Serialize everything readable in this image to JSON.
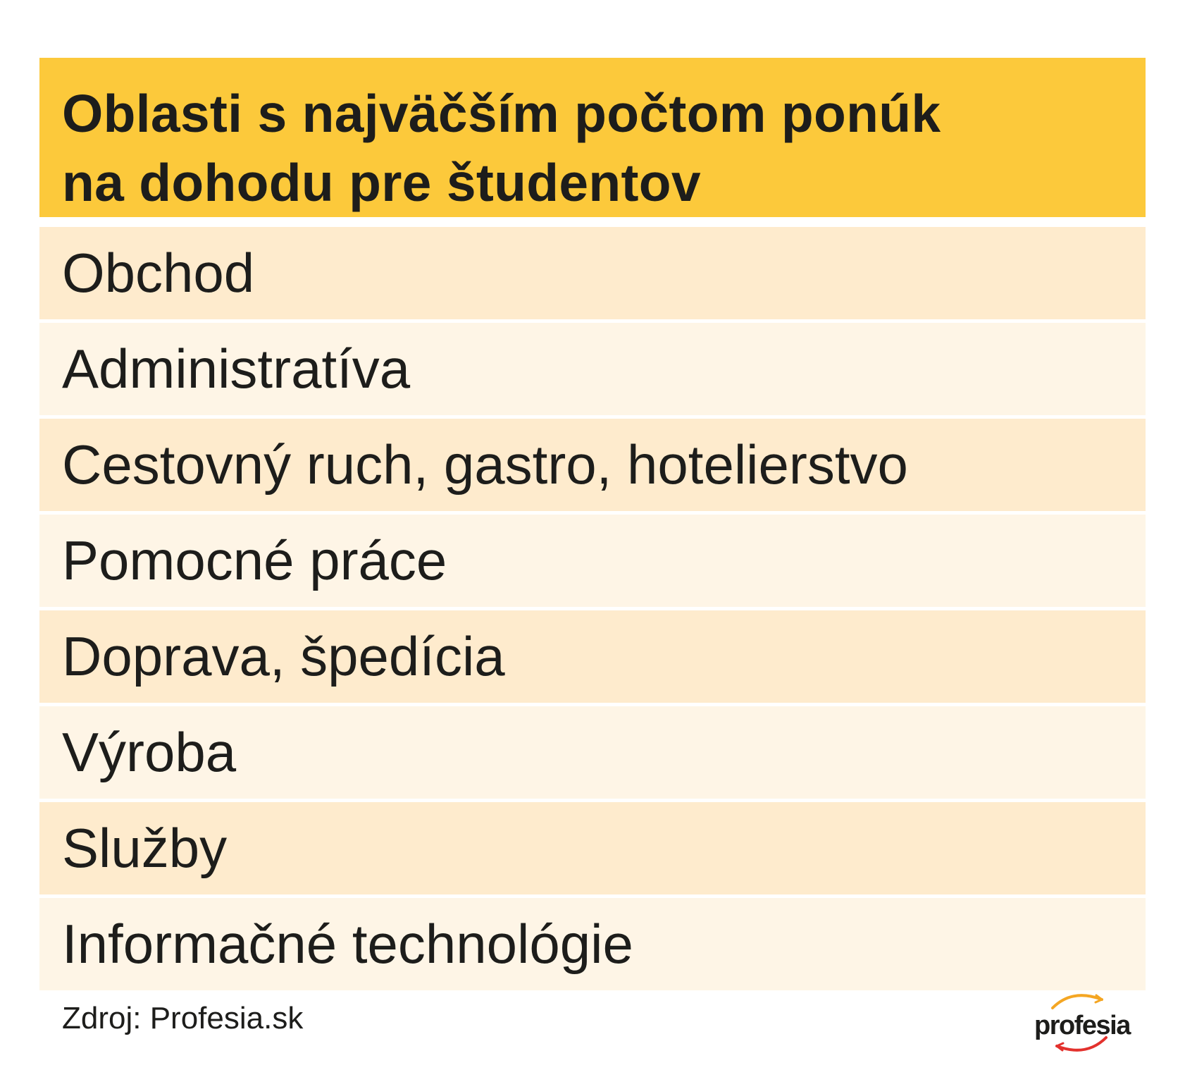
{
  "header": {
    "title_line1": "Oblasti s najväčším počtom ponúk",
    "title_line2": "na dohodu pre študentov"
  },
  "rows": [
    "Obchod",
    "Administratíva",
    "Cestovný ruch, gastro, hotelierstvo",
    "Pomocné práce",
    "Doprava, špedícia",
    "Výroba",
    "Služby",
    "Informačné technológie"
  ],
  "footer": {
    "source": "Zdroj: Profesia.sk",
    "logo_text": "profesia"
  },
  "colors": {
    "header_bg": "#fcc93b",
    "row_odd_bg": "#feebcd",
    "row_even_bg": "#fef5e6",
    "logo_arc_orange": "#f4a623",
    "logo_arc_red": "#e3312d"
  }
}
